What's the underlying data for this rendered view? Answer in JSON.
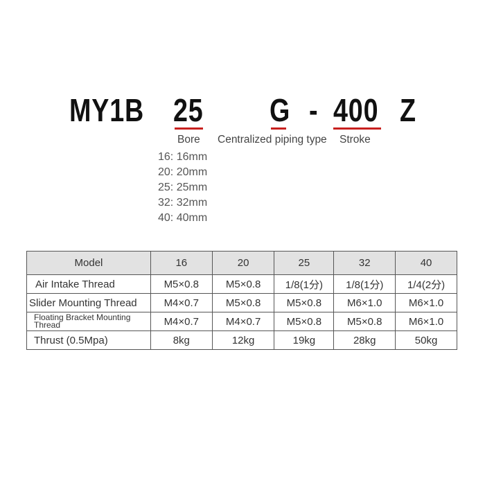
{
  "model_code": {
    "series": "MY1B",
    "bore": "25",
    "piping": "G",
    "dash": "-",
    "stroke": "400",
    "suffix": "Z",
    "accent_color": "#c8201e"
  },
  "labels": {
    "bore": "Bore",
    "piping": "Centralized piping type",
    "stroke": "Stroke"
  },
  "bore_options": [
    "16: 16mm",
    "20: 20mm",
    "25: 25mm",
    "32: 32mm",
    "40: 40mm"
  ],
  "table": {
    "header": [
      "Model",
      "16",
      "20",
      "25",
      "32",
      "40"
    ],
    "rows": [
      [
        "Air Intake Thread",
        "M5×0.8",
        "M5×0.8",
        "1/8(1分)",
        "1/8(1分)",
        "1/4(2分)"
      ],
      [
        "Slider Mounting Thread",
        "M4×0.7",
        "M5×0.8",
        "M5×0.8",
        "M6×1.0",
        "M6×1.0"
      ],
      [
        "Floating Bracket Mounting Thread",
        "M4×0.7",
        "M4×0.7",
        "M5×0.8",
        "M5×0.8",
        "M6×1.0"
      ],
      [
        "Thrust (0.5Mpa)",
        "8kg",
        "12kg",
        "19kg",
        "28kg",
        "50kg"
      ]
    ]
  }
}
